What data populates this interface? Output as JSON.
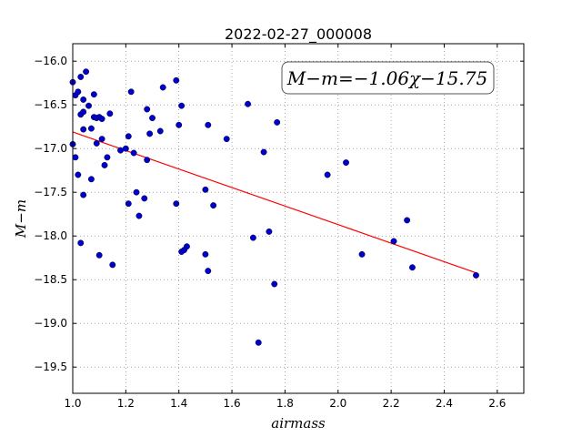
{
  "chart_data": {
    "type": "scatter",
    "title": "2022-02-27_000008",
    "xlabel": "airmass",
    "ylabel": "M−m",
    "xlim": [
      1.0,
      2.7
    ],
    "ylim": [
      -19.8,
      -15.8
    ],
    "y_inverted": true,
    "x_ticks": [
      1.0,
      1.2,
      1.4,
      1.6,
      1.8,
      2.0,
      2.2,
      2.4,
      2.6
    ],
    "x_tick_labels": [
      "1.0",
      "1.2",
      "1.4",
      "1.6",
      "1.8",
      "2.0",
      "2.2",
      "2.4",
      "2.6"
    ],
    "y_ticks": [
      -16.0,
      -16.5,
      -17.0,
      -17.5,
      -18.0,
      -18.5,
      -19.0,
      -19.5
    ],
    "y_tick_labels": [
      "−16.0",
      "−16.5",
      "−17.0",
      "−17.5",
      "−18.0",
      "−18.5",
      "−19.0",
      "−19.5"
    ],
    "grid": true,
    "fit_annotation": "M−m=−1.06χ−15.75",
    "fit": {
      "slope": -1.06,
      "intercept": -15.75,
      "x_range": [
        1.0,
        2.52
      ],
      "color": "#ff0000"
    },
    "point_color": "#0000cc",
    "points": [
      [
        1.0,
        -16.24
      ],
      [
        1.0,
        -16.95
      ],
      [
        1.01,
        -17.1
      ],
      [
        1.01,
        -16.39
      ],
      [
        1.02,
        -16.35
      ],
      [
        1.02,
        -17.3
      ],
      [
        1.03,
        -16.18
      ],
      [
        1.03,
        -16.61
      ],
      [
        1.03,
        -18.08
      ],
      [
        1.04,
        -16.58
      ],
      [
        1.04,
        -16.44
      ],
      [
        1.04,
        -16.78
      ],
      [
        1.04,
        -17.53
      ],
      [
        1.05,
        -16.12
      ],
      [
        1.06,
        -16.51
      ],
      [
        1.07,
        -16.77
      ],
      [
        1.07,
        -17.35
      ],
      [
        1.08,
        -16.38
      ],
      [
        1.08,
        -16.64
      ],
      [
        1.09,
        -16.65
      ],
      [
        1.09,
        -16.94
      ],
      [
        1.1,
        -16.64
      ],
      [
        1.1,
        -18.22
      ],
      [
        1.11,
        -16.66
      ],
      [
        1.11,
        -16.89
      ],
      [
        1.12,
        -17.19
      ],
      [
        1.13,
        -17.1
      ],
      [
        1.14,
        -16.6
      ],
      [
        1.15,
        -18.33
      ],
      [
        1.18,
        -17.02
      ],
      [
        1.2,
        -17.0
      ],
      [
        1.21,
        -16.86
      ],
      [
        1.21,
        -17.63
      ],
      [
        1.22,
        -16.35
      ],
      [
        1.23,
        -17.05
      ],
      [
        1.24,
        -17.5
      ],
      [
        1.25,
        -17.77
      ],
      [
        1.27,
        -17.57
      ],
      [
        1.28,
        -16.55
      ],
      [
        1.28,
        -17.13
      ],
      [
        1.29,
        -16.83
      ],
      [
        1.3,
        -16.65
      ],
      [
        1.33,
        -16.8
      ],
      [
        1.34,
        -16.3
      ],
      [
        1.39,
        -16.22
      ],
      [
        1.39,
        -17.63
      ],
      [
        1.4,
        -16.73
      ],
      [
        1.41,
        -16.51
      ],
      [
        1.41,
        -18.18
      ],
      [
        1.42,
        -18.16
      ],
      [
        1.43,
        -18.12
      ],
      [
        1.5,
        -17.47
      ],
      [
        1.5,
        -18.21
      ],
      [
        1.51,
        -16.73
      ],
      [
        1.51,
        -18.4
      ],
      [
        1.53,
        -17.65
      ],
      [
        1.58,
        -16.89
      ],
      [
        1.66,
        -16.49
      ],
      [
        1.68,
        -18.02
      ],
      [
        1.7,
        -19.22
      ],
      [
        1.72,
        -17.04
      ],
      [
        1.74,
        -17.95
      ],
      [
        1.76,
        -18.55
      ],
      [
        1.77,
        -16.7
      ],
      [
        1.96,
        -17.3
      ],
      [
        2.03,
        -17.16
      ],
      [
        2.09,
        -18.21
      ],
      [
        2.21,
        -18.06
      ],
      [
        2.26,
        -17.82
      ],
      [
        2.28,
        -18.36
      ],
      [
        2.52,
        -18.45
      ]
    ]
  }
}
